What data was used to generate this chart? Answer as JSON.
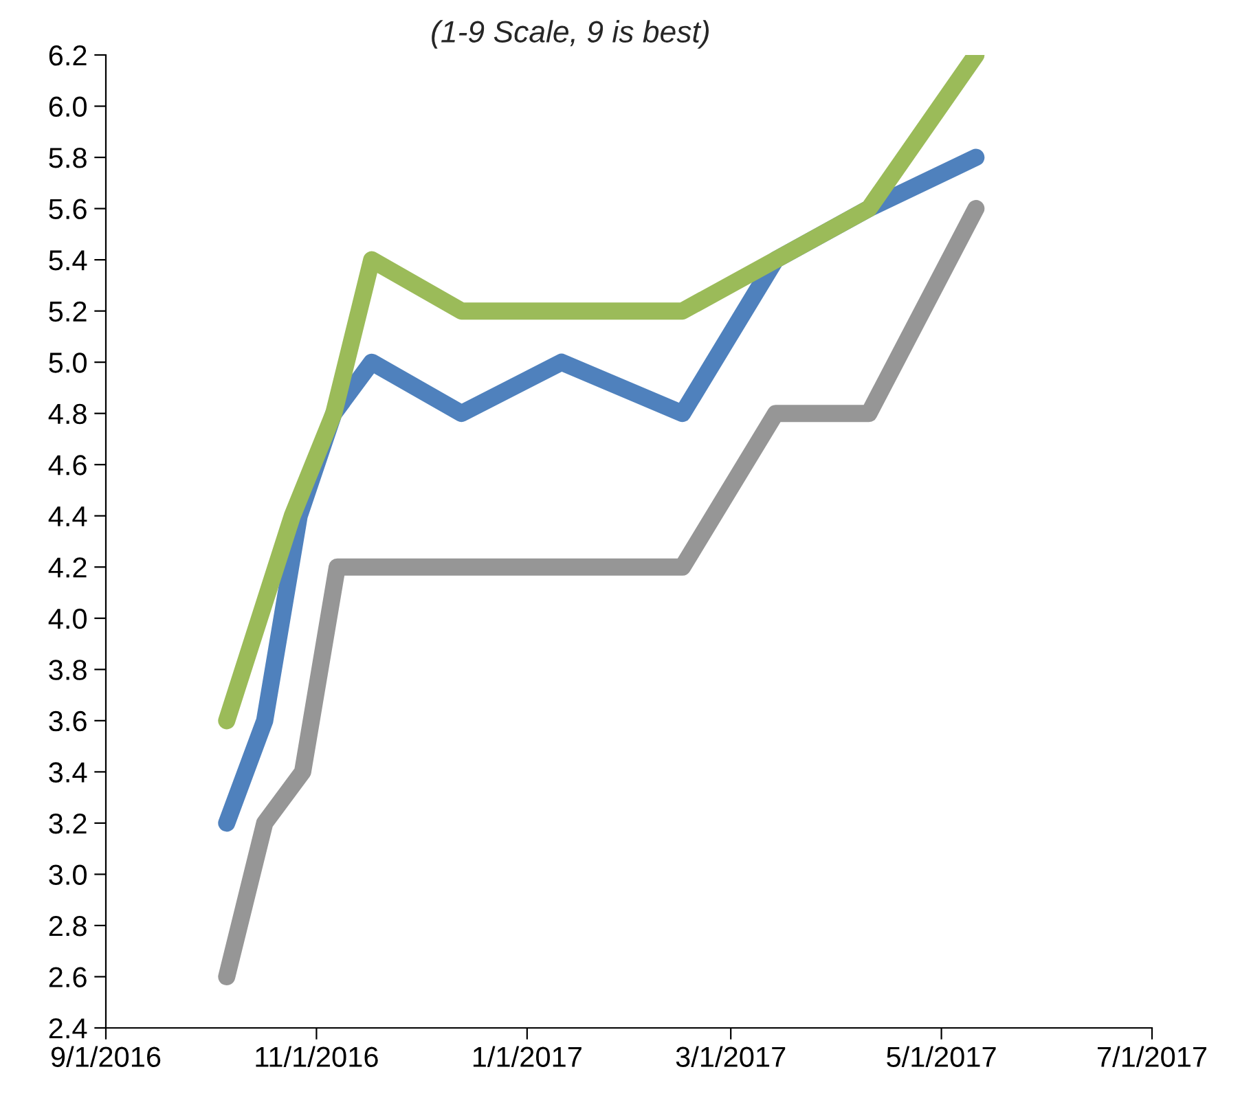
{
  "chart_data": {
    "type": "line",
    "title": "(1-9 Scale, 9 is best)",
    "series": [
      {
        "color": "#4f81bd",
        "x": [
          "2016-10-06",
          "2016-10-17",
          "2016-10-27",
          "2016-11-06",
          "2016-11-17",
          "2016-12-13",
          "2017-01-11",
          "2017-02-15",
          "2017-03-14",
          "2017-04-10",
          "2017-05-11"
        ],
        "values": [
          3.2,
          3.6,
          4.4,
          4.8,
          5.0,
          4.8,
          5.0,
          4.8,
          5.4,
          5.6,
          5.8
        ]
      },
      {
        "color": "#9bbb59",
        "x": [
          "2016-10-06",
          "2016-10-25",
          "2016-11-06",
          "2016-11-17",
          "2016-12-13",
          "2017-01-11",
          "2017-02-15",
          "2017-03-14",
          "2017-04-10",
          "2017-05-11"
        ],
        "values": [
          3.6,
          4.4,
          4.8,
          5.4,
          5.2,
          5.2,
          5.2,
          5.4,
          5.6,
          6.2
        ]
      },
      {
        "color": "#969696",
        "x": [
          "2016-10-06",
          "2016-10-17",
          "2016-10-28",
          "2016-11-07",
          "2017-02-15",
          "2017-03-14",
          "2017-04-10",
          "2017-05-11"
        ],
        "values": [
          2.6,
          3.2,
          3.4,
          4.2,
          4.2,
          4.8,
          4.8,
          5.6
        ]
      }
    ],
    "xlim": [
      "2016-09-01",
      "2017-07-01"
    ],
    "xticks": [
      {
        "value": "2016-09-01",
        "label": "9/1/2016"
      },
      {
        "value": "2016-11-01",
        "label": "11/1/2016"
      },
      {
        "value": "2017-01-01",
        "label": "1/1/2017"
      },
      {
        "value": "2017-03-01",
        "label": "3/1/2017"
      },
      {
        "value": "2017-05-01",
        "label": "5/1/2017"
      },
      {
        "value": "2017-07-01",
        "label": "7/1/2017"
      }
    ],
    "ylim": [
      2.4,
      6.2
    ],
    "yticks": [
      {
        "value": 2.4,
        "label": "2.4"
      },
      {
        "value": 2.6,
        "label": "2.6"
      },
      {
        "value": 2.8,
        "label": "2.8"
      },
      {
        "value": 3.0,
        "label": "3.0"
      },
      {
        "value": 3.2,
        "label": "3.2"
      },
      {
        "value": 3.4,
        "label": "3.4"
      },
      {
        "value": 3.6,
        "label": "3.6"
      },
      {
        "value": 3.8,
        "label": "3.8"
      },
      {
        "value": 4.0,
        "label": "4.0"
      },
      {
        "value": 4.2,
        "label": "4.2"
      },
      {
        "value": 4.4,
        "label": "4.4"
      },
      {
        "value": 4.6,
        "label": "4.6"
      },
      {
        "value": 4.8,
        "label": "4.8"
      },
      {
        "value": 5.0,
        "label": "5.0"
      },
      {
        "value": 5.2,
        "label": "5.2"
      },
      {
        "value": 5.4,
        "label": "5.4"
      },
      {
        "value": 5.6,
        "label": "5.6"
      },
      {
        "value": 5.8,
        "label": "5.8"
      },
      {
        "value": 6.0,
        "label": "6.0"
      },
      {
        "value": 6.2,
        "label": "6.2"
      }
    ],
    "grid": false,
    "marker": "none",
    "line_style": "solid"
  }
}
